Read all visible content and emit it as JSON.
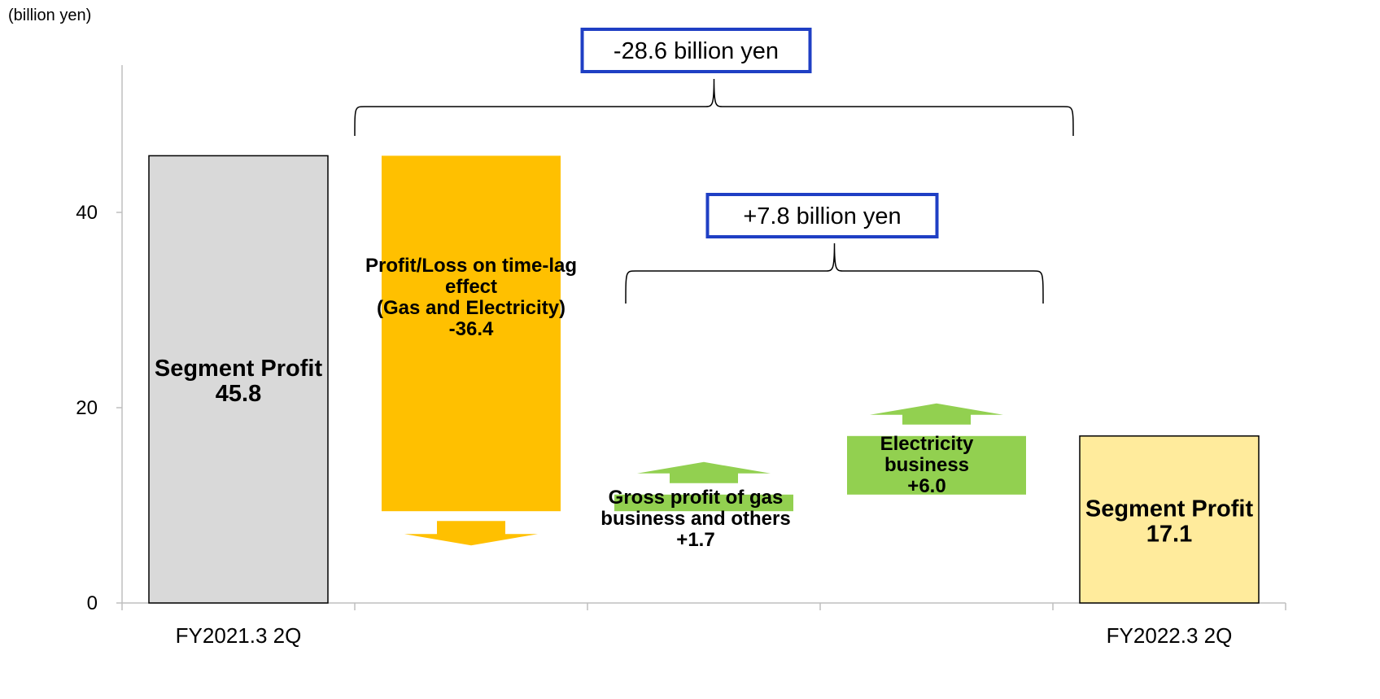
{
  "chart_data": {
    "type": "bar",
    "subtype": "waterfall",
    "unit_label": "(billion yen)",
    "title": "",
    "xlabel": "",
    "ylabel": "",
    "ylim": [
      0,
      48
    ],
    "yticks": [
      0,
      20,
      40
    ],
    "categories": [
      "FY2021.3 2Q",
      "",
      "",
      "",
      "FY2022.3 2Q"
    ],
    "items": [
      {
        "id": "seg2021",
        "kind": "total",
        "category": "FY2021.3 2Q",
        "lines": [
          "Segment Profit",
          "45.8"
        ],
        "value": 45.8,
        "color": "#d9d9d9"
      },
      {
        "id": "timelag",
        "kind": "delta",
        "category": "",
        "lines": [
          "Profit/Loss on time-lag",
          "effect",
          "(Gas and Electricity)",
          "-36.4"
        ],
        "value": -36.4,
        "color": "#ffc000"
      },
      {
        "id": "gas",
        "kind": "delta",
        "category": "",
        "lines": [
          "Gross profit of gas",
          "business and others",
          "+1.7"
        ],
        "value": 1.7,
        "color": "#92d050"
      },
      {
        "id": "elec",
        "kind": "delta",
        "category": "",
        "lines": [
          "Electricity",
          "business",
          "+6.0"
        ],
        "value": 6.0,
        "color": "#92d050"
      },
      {
        "id": "seg2022",
        "kind": "total",
        "category": "FY2022.3 2Q",
        "lines": [
          "Segment Profit",
          "17.1"
        ],
        "value": 17.1,
        "color": "#ffeb9c"
      }
    ],
    "annotations": [
      {
        "id": "total-change",
        "text": "-28.6 billion yen",
        "span": [
          "timelag",
          "seg2022"
        ]
      },
      {
        "id": "sub-change",
        "text": "+7.8 billion yen",
        "span": [
          "gas",
          "elec"
        ]
      }
    ],
    "grid": false,
    "legend": "none"
  }
}
